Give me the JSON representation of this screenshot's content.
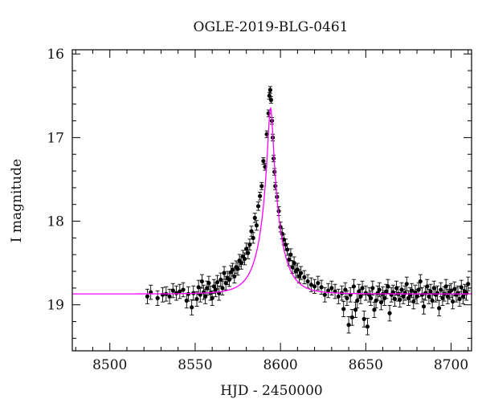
{
  "chart_data": {
    "type": "scatter",
    "title": "OGLE-2019-BLG-0461",
    "xlabel": "HJD - 2450000",
    "ylabel": "I magnitude",
    "xlim": [
      8478,
      8712
    ],
    "ylim": [
      19.55,
      15.95
    ],
    "y_inverted": true,
    "grid": false,
    "xticks": [
      8500,
      8550,
      8600,
      8650,
      8700
    ],
    "yticks": [
      16,
      17,
      18,
      19
    ],
    "colors": {
      "data": "#000000",
      "model": "#ff00ff"
    },
    "model": {
      "name": "",
      "t0": 8594.2,
      "u0": 0.13,
      "tE": 11.0,
      "baseline_mag": 18.87,
      "x_range": [
        8478,
        8712
      ]
    },
    "series": [
      {
        "name": "",
        "errorbars": true,
        "x": [
          8522,
          8524,
          8528,
          8531,
          8533,
          8535,
          8537,
          8539,
          8541,
          8543,
          8545,
          8546,
          8548,
          8549,
          8551,
          8552,
          8553,
          8554,
          8555,
          8556,
          8557,
          8558,
          8559,
          8560,
          8561,
          8562,
          8563,
          8564,
          8565,
          8566,
          8567,
          8568,
          8569,
          8570,
          8571,
          8572,
          8573,
          8574,
          8575,
          8576,
          8577,
          8578,
          8579,
          8580,
          8581,
          8582,
          8583,
          8584,
          8585,
          8586,
          8587,
          8588,
          8589,
          8590,
          8591,
          8592,
          8593,
          8593.5,
          8594,
          8594.5,
          8595,
          8595.5,
          8596,
          8596.5,
          8597,
          8598,
          8599,
          8600,
          8601,
          8602,
          8603,
          8604,
          8605,
          8606,
          8607,
          8608,
          8609,
          8610,
          8611,
          8612,
          8614,
          8616,
          8618,
          8620,
          8622,
          8624,
          8626,
          8628,
          8630,
          8632,
          8634,
          8636,
          8637,
          8638,
          8639,
          8640,
          8641,
          8642,
          8643,
          8644,
          8645,
          8646,
          8647,
          8648,
          8649,
          8650,
          8651,
          8652,
          8653,
          8654,
          8655,
          8656,
          8657,
          8658,
          8659,
          8660,
          8661,
          8662,
          8663,
          8664,
          8665,
          8666,
          8667,
          8668,
          8669,
          8670,
          8671,
          8672,
          8673,
          8674,
          8675,
          8676,
          8677,
          8678,
          8679,
          8680,
          8681,
          8682,
          8683,
          8684,
          8685,
          8686,
          8687,
          8688,
          8689,
          8690,
          8691,
          8692,
          8693,
          8694,
          8695,
          8696,
          8697,
          8698,
          8699,
          8700,
          8701,
          8702,
          8703,
          8704,
          8705,
          8706,
          8707,
          8708,
          8709,
          8710
        ],
        "y": [
          18.9,
          18.85,
          18.92,
          18.88,
          18.87,
          18.9,
          18.83,
          18.86,
          18.84,
          18.82,
          18.95,
          18.87,
          19.03,
          18.86,
          18.93,
          18.79,
          18.88,
          18.72,
          18.85,
          18.9,
          18.8,
          18.74,
          18.86,
          18.92,
          18.78,
          18.82,
          18.73,
          18.86,
          18.7,
          18.8,
          18.62,
          18.74,
          18.68,
          18.7,
          18.61,
          18.58,
          18.66,
          18.55,
          18.57,
          18.47,
          18.5,
          18.42,
          18.45,
          18.33,
          18.38,
          18.28,
          18.12,
          18.2,
          17.96,
          18.05,
          17.82,
          17.7,
          17.58,
          17.28,
          17.35,
          16.96,
          16.71,
          16.5,
          16.43,
          16.55,
          16.8,
          17.0,
          17.25,
          17.41,
          17.58,
          17.71,
          17.88,
          18.07,
          18.15,
          18.22,
          18.28,
          18.34,
          18.46,
          18.4,
          18.55,
          18.5,
          18.6,
          18.58,
          18.66,
          18.62,
          18.67,
          18.72,
          18.76,
          18.78,
          18.74,
          18.79,
          18.88,
          18.83,
          18.8,
          18.84,
          18.9,
          18.86,
          19.05,
          18.82,
          18.92,
          19.24,
          18.88,
          19.15,
          18.78,
          19.06,
          18.95,
          18.84,
          18.9,
          18.8,
          19.17,
          18.86,
          19.26,
          18.88,
          18.92,
          18.8,
          19.06,
          18.95,
          18.86,
          18.82,
          18.97,
          18.87,
          18.92,
          18.84,
          18.78,
          19.1,
          18.88,
          18.85,
          18.93,
          18.8,
          18.87,
          18.94,
          18.82,
          18.9,
          18.86,
          18.75,
          18.92,
          18.88,
          18.83,
          18.96,
          18.85,
          18.9,
          18.82,
          18.72,
          18.88,
          19.02,
          18.86,
          18.78,
          18.9,
          18.84,
          18.95,
          18.8,
          18.88,
          18.86,
          19.04,
          18.82,
          18.92,
          18.87,
          18.78,
          18.9,
          18.85,
          18.83,
          18.96,
          18.81,
          18.88,
          18.86,
          18.93,
          18.79,
          18.9,
          18.84,
          18.86,
          18.75
        ]
      }
    ]
  }
}
